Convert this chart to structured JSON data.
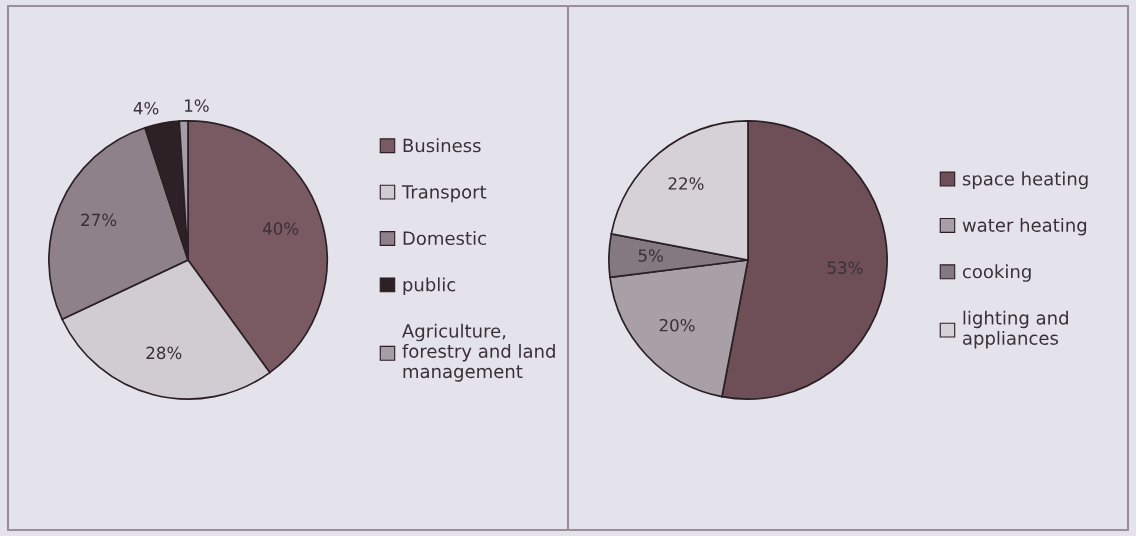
{
  "chart_data": [
    {
      "type": "pie",
      "categories": [
        "Business",
        "Transport",
        "Domestic",
        "public",
        "Agriculture, forestry and land management"
      ],
      "values": [
        40,
        28,
        27,
        4,
        1
      ],
      "value_labels": [
        "40%",
        "28%",
        "27%",
        "4%",
        "1%"
      ],
      "colors": [
        "#7a5a62",
        "#d0ccd2",
        "#8e8189",
        "#2e2126",
        "#a59ea6"
      ],
      "legend": "right"
    },
    {
      "type": "pie",
      "categories": [
        "space heating",
        "water heating",
        "cooking",
        "lighting and appliances"
      ],
      "values": [
        53,
        20,
        5,
        22
      ],
      "value_labels": [
        "53%",
        "20%",
        "5%",
        "22%"
      ],
      "colors": [
        "#6e4f58",
        "#a99fa7",
        "#857981",
        "#d6d1d6"
      ],
      "legend": "right"
    }
  ]
}
